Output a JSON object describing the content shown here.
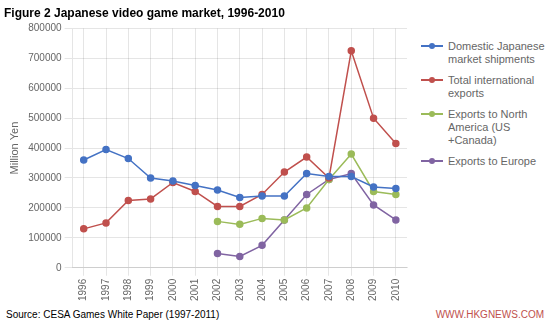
{
  "chart_data": {
    "type": "line",
    "title": "Figure 2 Japanese video game market, 1996-2010",
    "y_label": "Million Yen",
    "annotations": [
      {
        "text": "Source: CESA Games White Paper (1997-2011)"
      },
      {
        "text": "WWW.HKGNEWS.COM",
        "color": "#C0504D"
      }
    ],
    "x": [
      1996,
      1997,
      1998,
      1999,
      2000,
      2001,
      2002,
      2003,
      2004,
      2005,
      2006,
      2007,
      2008,
      2009,
      2010
    ],
    "series": [
      {
        "name": "Domestic Japanese\nmarket shipments",
        "color": "#4472C4",
        "marker": "circle",
        "values": [
          360000,
          395000,
          365000,
          300000,
          290000,
          275000,
          260000,
          235000,
          240000,
          240000,
          315000,
          305000,
          305000,
          270000,
          265000
        ]
      },
      {
        "name": "Total international\nexports",
        "color": "#C0504D",
        "marker": "circle",
        "values": [
          130000,
          150000,
          225000,
          230000,
          285000,
          255000,
          205000,
          205000,
          245000,
          320000,
          370000,
          300000,
          725000,
          500000,
          415000
        ]
      },
      {
        "name": "Exports to North\nAmerica (US\n+Canada)",
        "color": "#9BBB59",
        "marker": "circle",
        "values": [
          null,
          null,
          null,
          null,
          null,
          null,
          155000,
          145000,
          165000,
          160000,
          200000,
          295000,
          380000,
          255000,
          245000
        ]
      },
      {
        "name": "Exports to Europe",
        "color": "#8064A2",
        "marker": "circle",
        "values": [
          null,
          null,
          null,
          null,
          null,
          null,
          48000,
          38000,
          75000,
          160000,
          245000,
          295000,
          315000,
          210000,
          160000
        ]
      }
    ],
    "xlim": [
      1995.5,
      2010.5
    ],
    "xticks": [
      1996,
      1997,
      1998,
      1999,
      2000,
      2001,
      2002,
      2003,
      2004,
      2005,
      2006,
      2007,
      2008,
      2009,
      2010
    ],
    "ylim": [
      0,
      800000
    ],
    "yticks": [
      0,
      100000,
      200000,
      300000,
      400000,
      500000,
      600000,
      700000,
      800000
    ],
    "grid": true,
    "legend": "right"
  }
}
